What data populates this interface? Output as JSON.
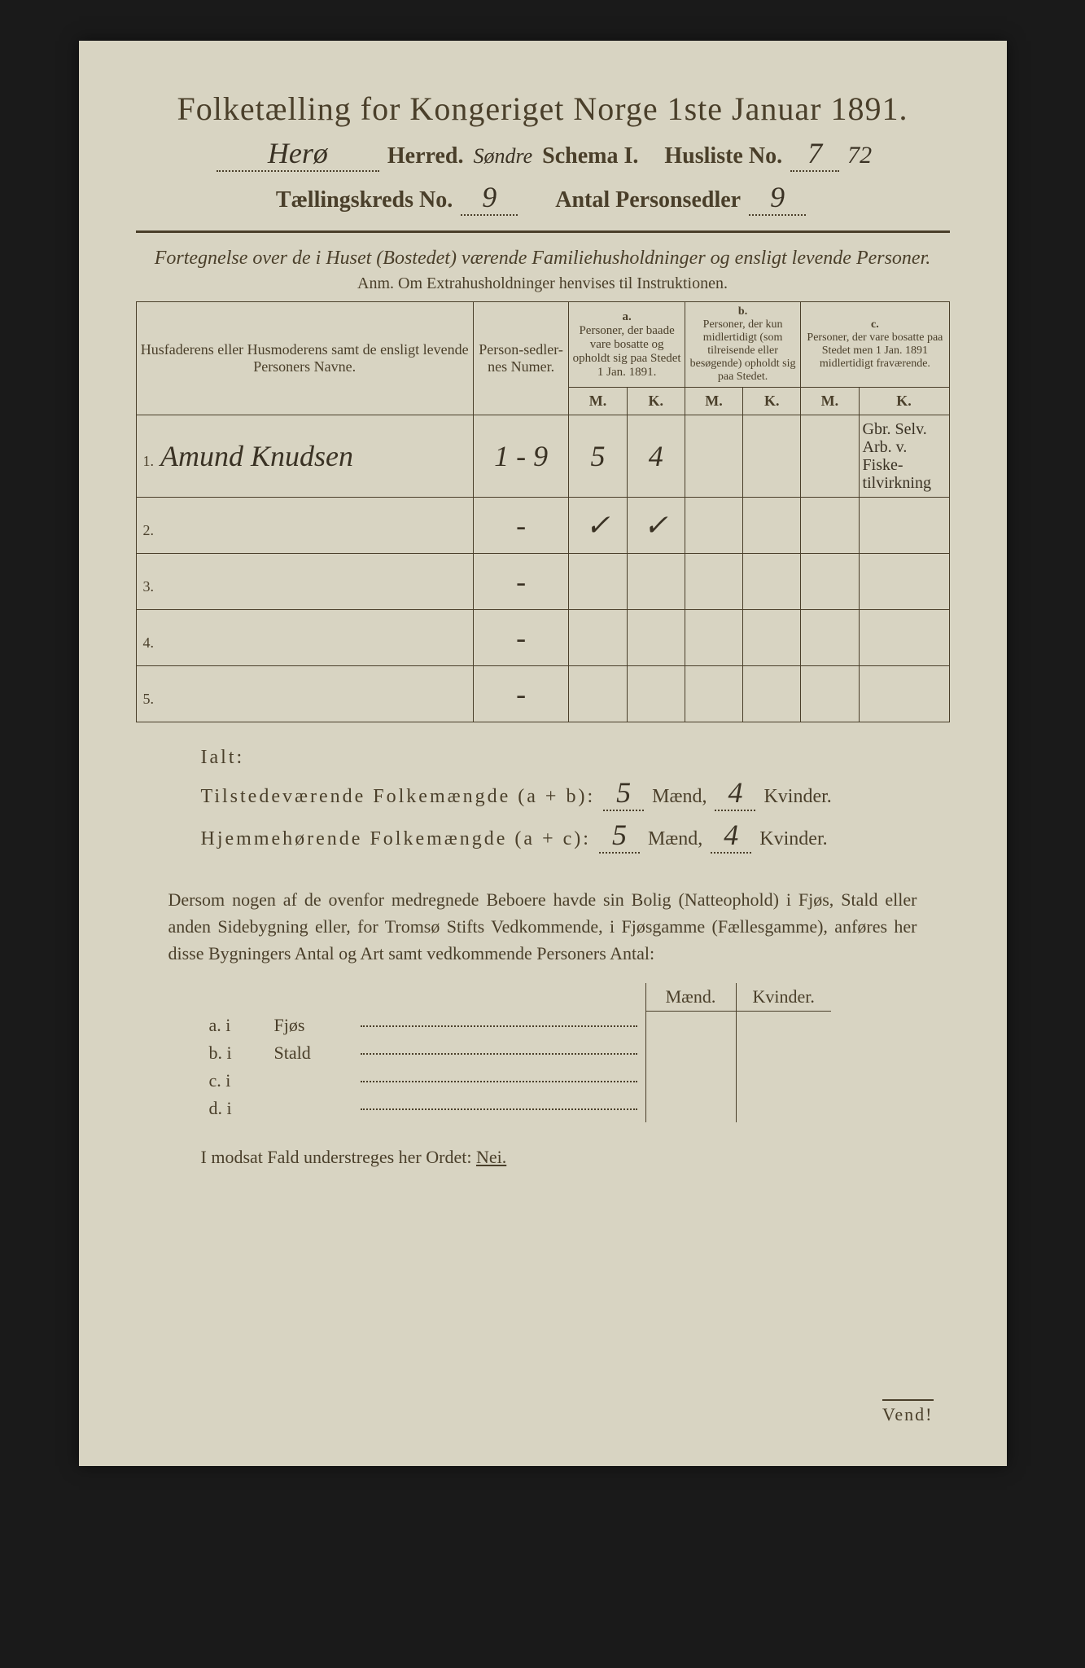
{
  "colors": {
    "page_bg": "#d8d4c2",
    "outer_bg": "#1a1a1a",
    "ink": "#4a3f2a",
    "handwriting": "#3a3224"
  },
  "typography": {
    "title_fontsize": 40,
    "header_fontsize": 28,
    "body_fontsize": 22,
    "table_fontsize": 18,
    "handwritten_family": "cursive"
  },
  "header": {
    "title": "Folketælling for Kongeriget Norge 1ste Januar 1891.",
    "herred_value": "Herø",
    "herred_label": "Herred.",
    "herred_note": "Søndre",
    "schema_label": "Schema I.",
    "husliste_label": "Husliste No.",
    "husliste_value": "7",
    "husliste_extra": "72",
    "kreds_label": "Tællingskreds No.",
    "kreds_value": "9",
    "antal_label": "Antal Personsedler",
    "antal_value": "9"
  },
  "subtitle": "Fortegnelse over de i Huset (Bostedet) værende Familiehusholdninger og ensligt levende Personer.",
  "anm": "Anm.  Om Extrahusholdninger henvises til Instruktionen.",
  "table": {
    "col_names": "Husfaderens eller Husmoderens samt de ensligt levende Personers Navne.",
    "col_num": "Person-sedler-nes Numer.",
    "col_a_label": "a.",
    "col_a": "Personer, der baade vare bosatte og opholdt sig paa Stedet 1 Jan. 1891.",
    "col_b_label": "b.",
    "col_b": "Personer, der kun midlertidigt (som tilreisende eller besøgende) opholdt sig paa Stedet.",
    "col_c_label": "c.",
    "col_c": "Personer, der vare bosatte paa Stedet men 1 Jan. 1891 midlertidigt fraværende.",
    "mk_m": "M.",
    "mk_k": "K.",
    "rows": [
      {
        "n": "1.",
        "name": "Amund Knudsen",
        "num": "1 - 9",
        "a_m": "5",
        "a_k": "4",
        "b_m": "",
        "b_k": "",
        "c_m": "",
        "c_k": "",
        "note": "Gbr. Selv. Arb. v. Fiske- tilvirkning"
      },
      {
        "n": "2.",
        "name": "",
        "num": "-",
        "a_m": "✓",
        "a_k": "✓",
        "b_m": "",
        "b_k": "",
        "c_m": "",
        "c_k": "",
        "note": ""
      },
      {
        "n": "3.",
        "name": "",
        "num": "-",
        "a_m": "",
        "a_k": "",
        "b_m": "",
        "b_k": "",
        "c_m": "",
        "c_k": "",
        "note": ""
      },
      {
        "n": "4.",
        "name": "",
        "num": "-",
        "a_m": "",
        "a_k": "",
        "b_m": "",
        "b_k": "",
        "c_m": "",
        "c_k": "",
        "note": ""
      },
      {
        "n": "5.",
        "name": "",
        "num": "-",
        "a_m": "",
        "a_k": "",
        "b_m": "",
        "b_k": "",
        "c_m": "",
        "c_k": "",
        "note": ""
      }
    ]
  },
  "totals": {
    "ialt_label": "Ialt:",
    "line1_label": "Tilstedeværende Folkemængde (a + b):",
    "line1_m": "5",
    "line1_k": "4",
    "line2_label": "Hjemmehørende Folkemængde (a + c):",
    "line2_m": "5",
    "line2_k": "4",
    "maend": "Mænd,",
    "kvinder": "Kvinder."
  },
  "paragraph": "Dersom nogen af de ovenfor medregnede Beboere havde sin Bolig (Natteophold) i Fjøs, Stald eller anden Sidebygning eller, for Tromsø Stifts Vedkommende, i Fjøsgamme (Fællesgamme), anføres her disse Bygningers Antal og Art samt vedkommende Personers Antal:",
  "subtable": {
    "maend": "Mænd.",
    "kvinder": "Kvinder.",
    "rows": [
      {
        "k": "a.  i",
        "label": "Fjøs"
      },
      {
        "k": "b.  i",
        "label": "Stald"
      },
      {
        "k": "c.  i",
        "label": ""
      },
      {
        "k": "d.  i",
        "label": ""
      }
    ]
  },
  "final_line": "I modsat Fald understreges her Ordet: ",
  "final_word": "Nei.",
  "vend": "Vend!"
}
